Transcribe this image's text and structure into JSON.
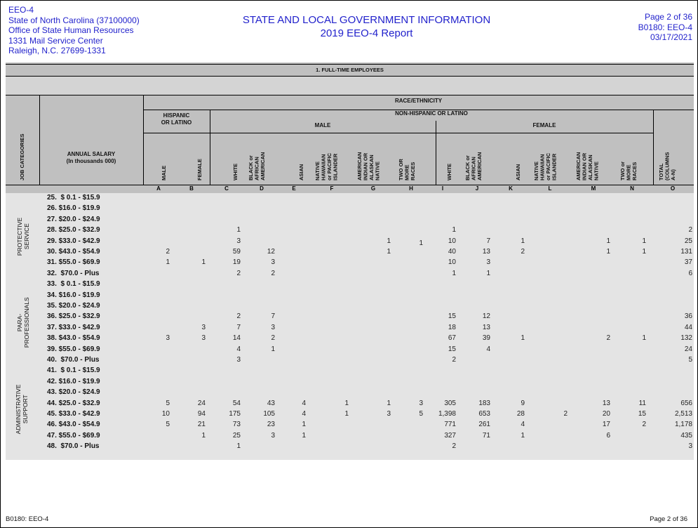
{
  "header": {
    "left": [
      "EEO-4",
      "State of North Carolina (37100000)",
      "Office of State Human Resources",
      "1331 Mail Service Center",
      "Raleigh, N.C. 27699-1331"
    ],
    "title": "STATE AND LOCAL GOVERNMENT INFORMATION",
    "subtitle": "2019 EEO-4 Report",
    "right": [
      "Page 2 of 36",
      "B0180: EEO-4",
      "03/17/2021"
    ]
  },
  "section_title": "1. FULL-TIME EMPLOYEES",
  "table_header": {
    "job_categories": "JOB CATEGORIES",
    "annual_salary": "ANNUAL SALARY\n(In thousands 000)",
    "race_ethnicity": "RACE/ETHNICITY",
    "hispanic": "HISPANIC\nOR LATINO",
    "non_hispanic": "NON-HISPANIC OR LATINO",
    "male": "MALE",
    "female": "FEMALE",
    "columns": [
      {
        "letter": "A",
        "label": "MALE"
      },
      {
        "letter": "B",
        "label": "FEMALE"
      },
      {
        "letter": "C",
        "label": "WHITE"
      },
      {
        "letter": "D",
        "label": "BLACK or\nAFRICAN\nAMERICAN"
      },
      {
        "letter": "E",
        "label": "ASIAN"
      },
      {
        "letter": "F",
        "label": "NATIVE\nHAWAIIAN\nor PACIFIC\nISLANDER"
      },
      {
        "letter": "G",
        "label": "AMERICAN\nINDIAN OR\nALASKAN\nNATIVE"
      },
      {
        "letter": "H",
        "label": "TWO OR\nMORE\nRACES"
      },
      {
        "letter": "I",
        "label": "WHITE"
      },
      {
        "letter": "J",
        "label": "BLACK or\nAFRICAN\nAMERICAN"
      },
      {
        "letter": "K",
        "label": "ASIAN"
      },
      {
        "letter": "L",
        "label": "NATIVE\nHAWAIIAN\nor PACIFIC\nISLANDER"
      },
      {
        "letter": "M",
        "label": "AMERICAN\nINDIAN OR\nALASKAN\nNATIVE"
      },
      {
        "letter": "N",
        "label": "TWO or\nMORE\nRACES"
      },
      {
        "letter": "O",
        "label": "TOTAL\n(COLUMNS\nA-N)"
      }
    ]
  },
  "categories": [
    {
      "name": "PROTECTIVE\nSERVICE",
      "rows": [
        {
          "salary": "25.  $ 0.1 - $15.9",
          "cells": [
            "",
            "",
            "",
            "",
            "",
            "",
            "",
            "",
            "",
            "",
            "",
            "",
            "",
            "",
            ""
          ]
        },
        {
          "salary": "26. $16.0 - $19.9",
          "cells": [
            "",
            "",
            "",
            "",
            "",
            "",
            "",
            "",
            "",
            "",
            "",
            "",
            "",
            "",
            ""
          ]
        },
        {
          "salary": "27. $20.0 - $24.9",
          "cells": [
            "",
            "",
            "",
            "",
            "",
            "",
            "",
            "",
            "",
            "",
            "",
            "",
            "",
            "",
            ""
          ]
        },
        {
          "salary": "28. $25.0 - $32.9",
          "cells": [
            "",
            "",
            "1",
            "",
            "",
            "",
            "",
            "",
            "1",
            "",
            "",
            "",
            "",
            "",
            "2"
          ]
        },
        {
          "salary": "29. $33.0 - $42.9",
          "cells": [
            "",
            "",
            "3",
            "",
            "",
            "",
            "1",
            "1",
            "10",
            "7",
            "1",
            "",
            "1",
            "1",
            "25"
          ]
        },
        {
          "salary": "30. $43.0 - $54.9",
          "cells": [
            "2",
            "",
            "59",
            "12",
            "",
            "",
            "1",
            "",
            "40",
            "13",
            "2",
            "",
            "1",
            "1",
            "131"
          ]
        },
        {
          "salary": "31. $55.0 - $69.9",
          "cells": [
            "1",
            "1",
            "19",
            "3",
            "",
            "",
            "",
            "",
            "10",
            "3",
            "",
            "",
            "",
            "",
            "37"
          ]
        },
        {
          "salary": "32.  $70.0 - Plus",
          "cells": [
            "",
            "",
            "2",
            "2",
            "",
            "",
            "",
            "",
            "1",
            "1",
            "",
            "",
            "",
            "",
            "6"
          ]
        }
      ]
    },
    {
      "name": "PARA-\nPROFESSIONALS",
      "rows": [
        {
          "salary": "33.  $ 0.1 - $15.9",
          "cells": [
            "",
            "",
            "",
            "",
            "",
            "",
            "",
            "",
            "",
            "",
            "",
            "",
            "",
            "",
            ""
          ]
        },
        {
          "salary": "34. $16.0 - $19.9",
          "cells": [
            "",
            "",
            "",
            "",
            "",
            "",
            "",
            "",
            "",
            "",
            "",
            "",
            "",
            "",
            ""
          ]
        },
        {
          "salary": "35. $20.0 - $24.9",
          "cells": [
            "",
            "",
            "",
            "",
            "",
            "",
            "",
            "",
            "",
            "",
            "",
            "",
            "",
            "",
            ""
          ]
        },
        {
          "salary": "36. $25.0 - $32.9",
          "cells": [
            "",
            "",
            "2",
            "7",
            "",
            "",
            "",
            "",
            "15",
            "12",
            "",
            "",
            "",
            "",
            "36"
          ]
        },
        {
          "salary": "37. $33.0 - $42.9",
          "cells": [
            "",
            "3",
            "7",
            "3",
            "",
            "",
            "",
            "",
            "18",
            "13",
            "",
            "",
            "",
            "",
            "44"
          ]
        },
        {
          "salary": "38. $43.0 - $54.9",
          "cells": [
            "3",
            "3",
            "14",
            "2",
            "",
            "",
            "",
            "",
            "67",
            "39",
            "1",
            "",
            "2",
            "1",
            "132"
          ]
        },
        {
          "salary": "39. $55.0 - $69.9",
          "cells": [
            "",
            "",
            "4",
            "1",
            "",
            "",
            "",
            "",
            "15",
            "4",
            "",
            "",
            "",
            "",
            "24"
          ]
        },
        {
          "salary": "40.  $70.0 - Plus",
          "cells": [
            "",
            "",
            "3",
            "",
            "",
            "",
            "",
            "",
            "2",
            "",
            "",
            "",
            "",
            "",
            "5"
          ]
        }
      ]
    },
    {
      "name": "ADMINISTRATIVE\nSUPPORT",
      "rows": [
        {
          "salary": "41.  $ 0.1 - $15.9",
          "cells": [
            "",
            "",
            "",
            "",
            "",
            "",
            "",
            "",
            "",
            "",
            "",
            "",
            "",
            "",
            ""
          ]
        },
        {
          "salary": "42. $16.0 - $19.9",
          "cells": [
            "",
            "",
            "",
            "",
            "",
            "",
            "",
            "",
            "",
            "",
            "",
            "",
            "",
            "",
            ""
          ]
        },
        {
          "salary": "43. $20.0 - $24.9",
          "cells": [
            "",
            "",
            "",
            "",
            "",
            "",
            "",
            "",
            "",
            "",
            "",
            "",
            "",
            "",
            ""
          ]
        },
        {
          "salary": "44. $25.0 - $32.9",
          "cells": [
            "5",
            "24",
            "54",
            "43",
            "4",
            "1",
            "1",
            "3",
            "305",
            "183",
            "9",
            "",
            "13",
            "11",
            "656"
          ]
        },
        {
          "salary": "45. $33.0 - $42.9",
          "cells": [
            "10",
            "94",
            "175",
            "105",
            "4",
            "1",
            "3",
            "5",
            "1,398",
            "653",
            "28",
            "2",
            "20",
            "15",
            "2,513"
          ]
        },
        {
          "salary": "46. $43.0 - $54.9",
          "cells": [
            "5",
            "21",
            "73",
            "23",
            "1",
            "",
            "",
            "",
            "771",
            "261",
            "4",
            "",
            "17",
            "2",
            "1,178"
          ]
        },
        {
          "salary": "47. $55.0 - $69.9",
          "cells": [
            "",
            "1",
            "25",
            "3",
            "1",
            "",
            "",
            "",
            "327",
            "71",
            "1",
            "",
            "6",
            "",
            "435"
          ]
        },
        {
          "salary": "48.  $70.0 - Plus",
          "cells": [
            "",
            "",
            "1",
            "",
            "",
            "",
            "",
            "",
            "2",
            "",
            "",
            "",
            "",
            "",
            "3"
          ]
        }
      ]
    }
  ],
  "footer": {
    "left": "B0180: EEO-4",
    "right": "Page 2 of 36"
  },
  "colors": {
    "header_text": "#2222cc",
    "band": "#c0c0c0",
    "data_bg": "#e4e4e4"
  }
}
